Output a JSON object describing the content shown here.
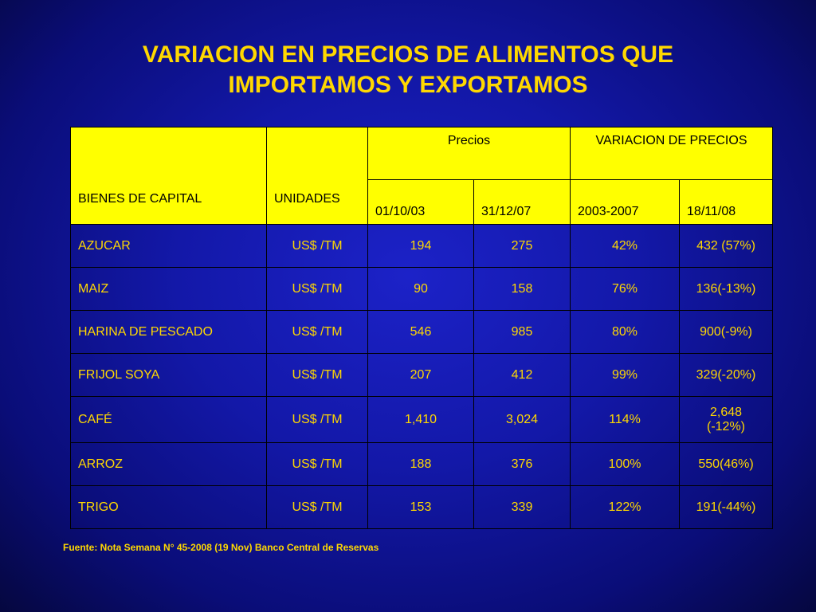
{
  "title": {
    "line1": "VARIACION EN PRECIOS DE ALIMENTOS QUE",
    "line2": "IMPORTAMOS Y EXPORTAMOS"
  },
  "table": {
    "headers": {
      "bienes": "BIENES DE CAPITAL",
      "unidades": "UNIDADES",
      "precios": "Precios",
      "variacion": "VARIACION DE PRECIOS",
      "fecha1": "01/10/03",
      "fecha2": "31/12/07",
      "periodo": "2003-2007",
      "fecha3": "18/11/08"
    },
    "rows": [
      {
        "name": "AZUCAR",
        "unit": "US$ /TM",
        "p2003": "194",
        "p2007": "275",
        "var": "42%",
        "p2008": "432 (57%)"
      },
      {
        "name": "MAIZ",
        "unit": "US$ /TM",
        "p2003": "90",
        "p2007": "158",
        "var": "76%",
        "p2008": "136(-13%)"
      },
      {
        "name": "HARINA DE PESCADO",
        "unit": "US$ /TM",
        "p2003": "546",
        "p2007": "985",
        "var": "80%",
        "p2008": "900(-9%)"
      },
      {
        "name": "FRIJOL SOYA",
        "unit": "US$ /TM",
        "p2003": "207",
        "p2007": "412",
        "var": "99%",
        "p2008": "329(-20%)"
      },
      {
        "name": "CAFÉ",
        "unit": "US$ /TM",
        "p2003": "1,410",
        "p2007": "3,024",
        "var": "114%",
        "p2008_line1": "2,648",
        "p2008_line2": "(-12%)"
      },
      {
        "name": "ARROZ",
        "unit": "US$ /TM",
        "p2003": "188",
        "p2007": "376",
        "var": "100%",
        "p2008": "550(46%)"
      },
      {
        "name": "TRIGO",
        "unit": "US$ /TM",
        "p2003": "153",
        "p2007": "339",
        "var": "122%",
        "p2008": "191(-44%)"
      }
    ]
  },
  "footer": "Fuente: Nota Semana N° 45-2008 (19 Nov) Banco Central de Reservas",
  "colors": {
    "text": "#ffd800",
    "header_bg": "#ffff00",
    "background": "#1318a8"
  }
}
